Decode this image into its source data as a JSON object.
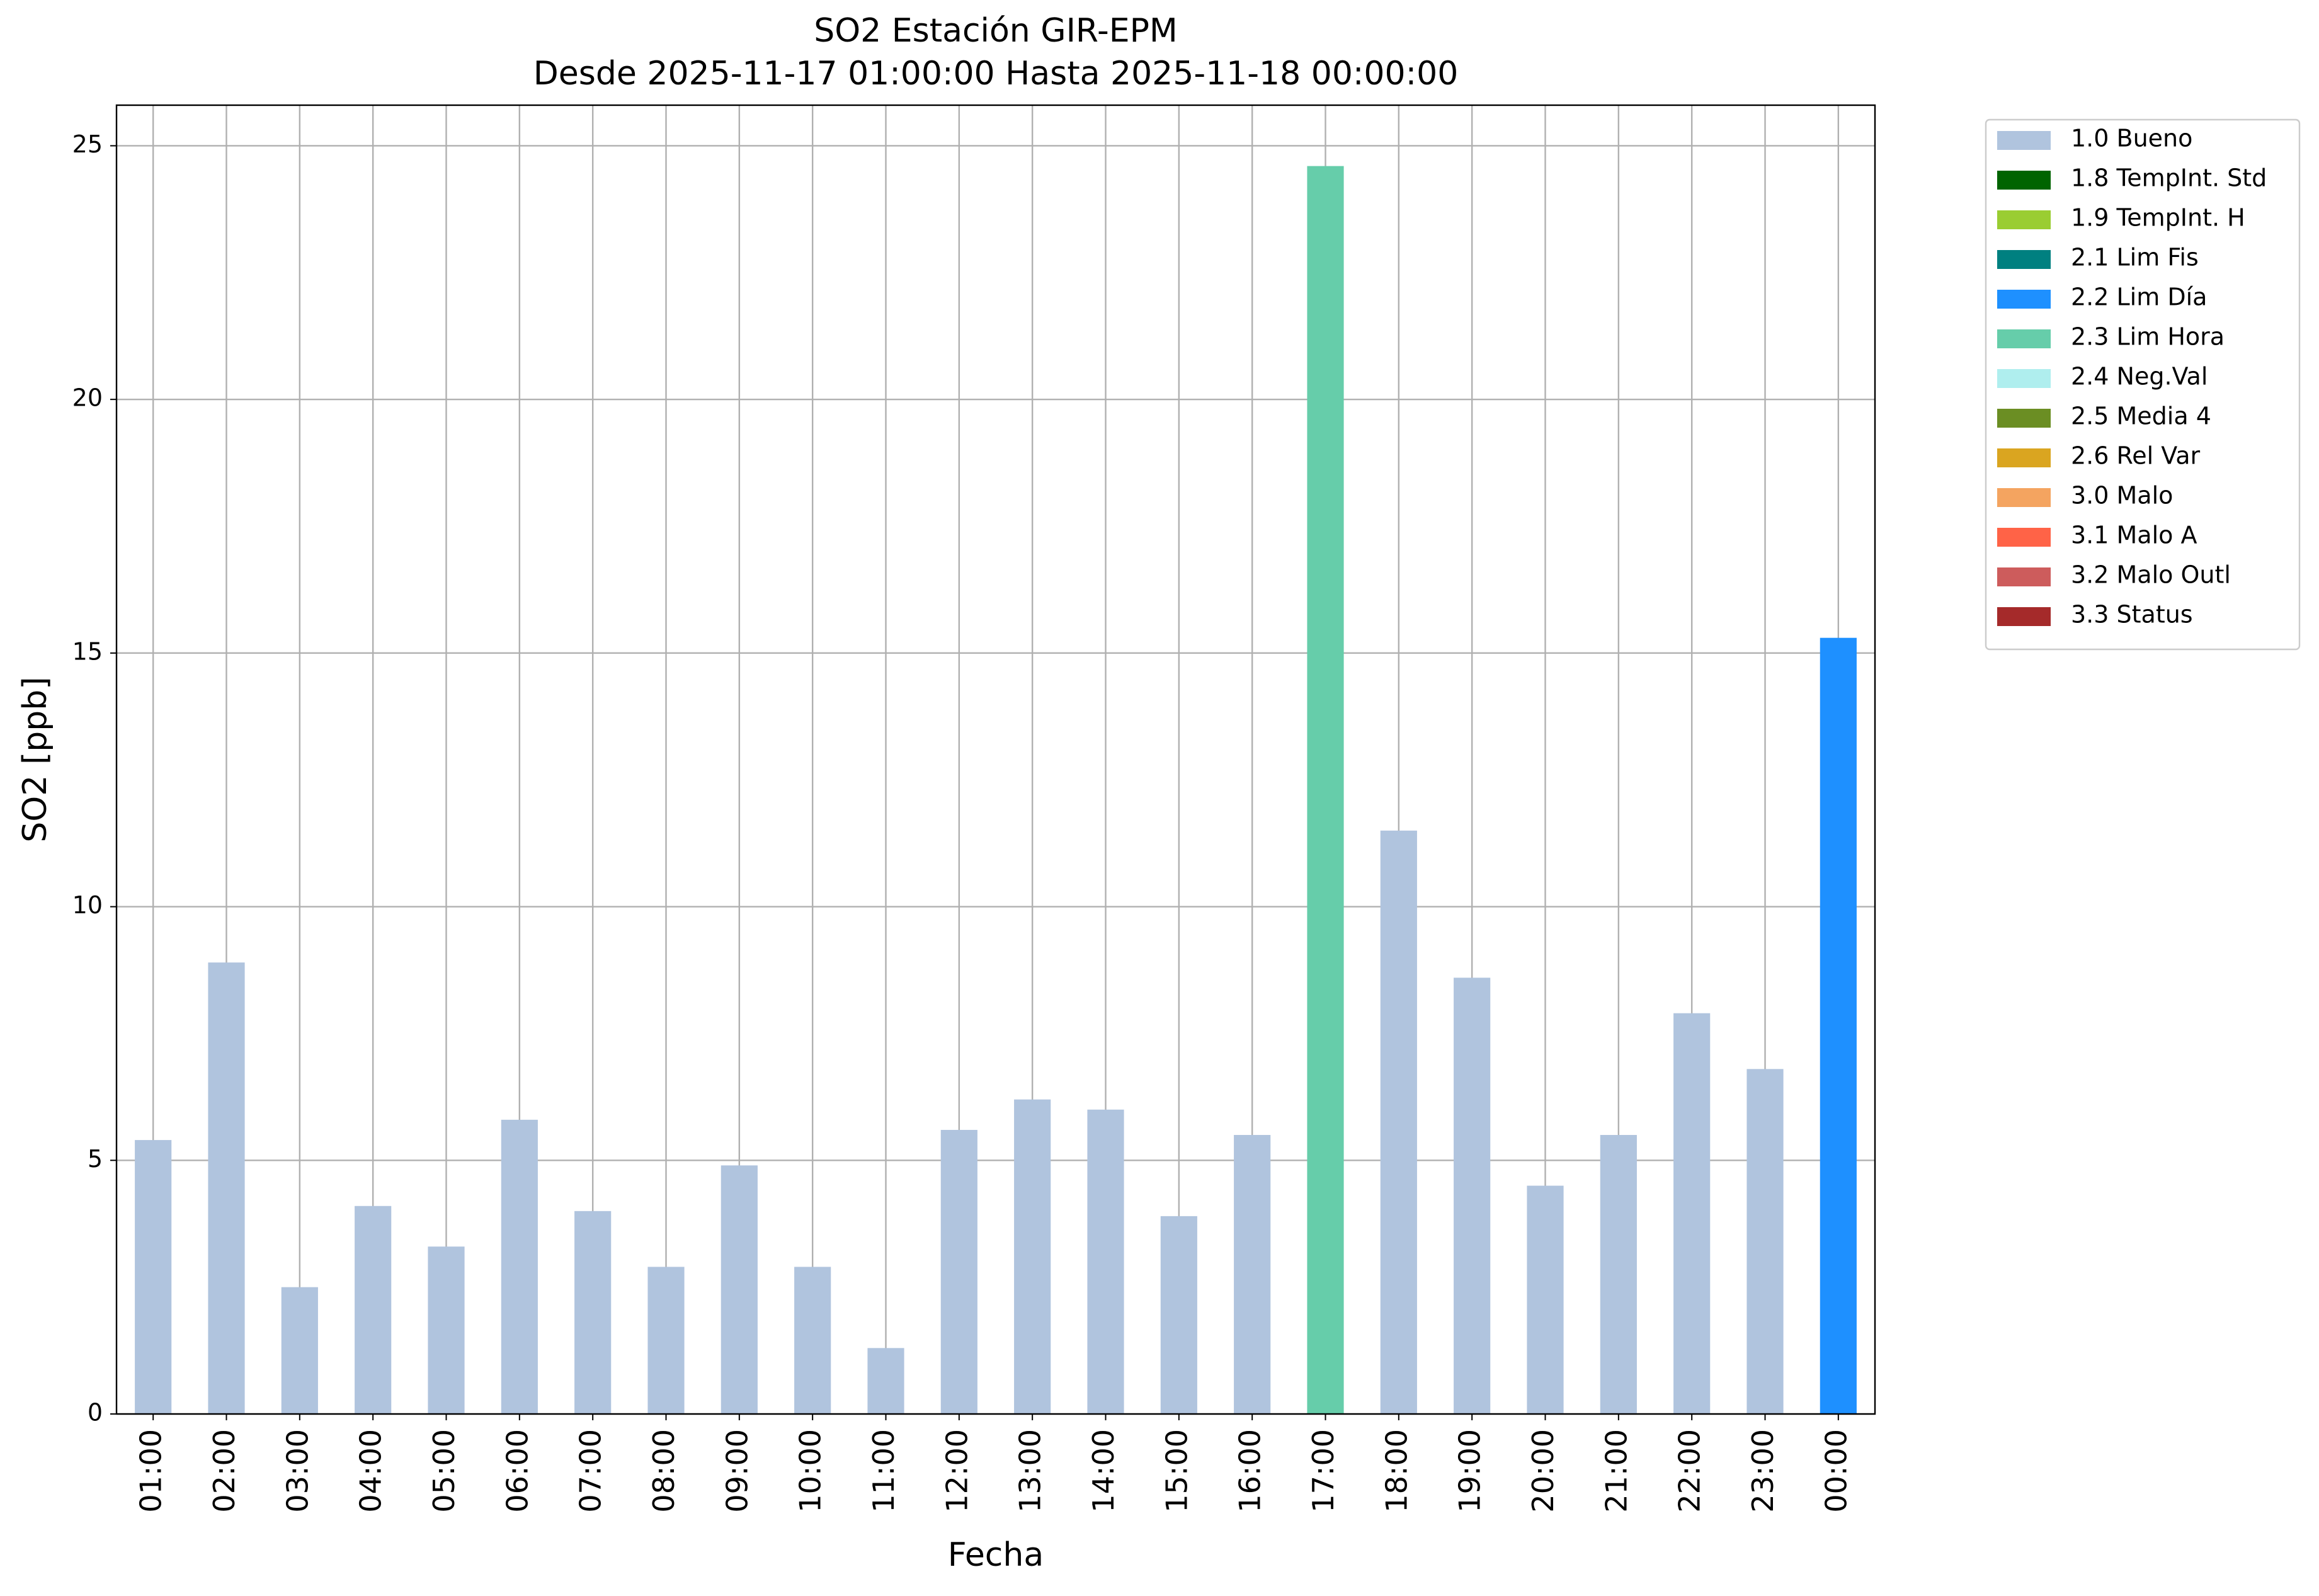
{
  "chart_data": {
    "type": "bar",
    "stacked": true,
    "title": "SO2 Estación GIR-EPM",
    "subtitle": "Desde 2025-11-17 01:00:00 Hasta 2025-11-18 00:00:00",
    "x_label": "Fecha",
    "y_label": "SO2 [ppb]",
    "categories": [
      "01:00",
      "02:00",
      "03:00",
      "04:00",
      "05:00",
      "06:00",
      "07:00",
      "08:00",
      "09:00",
      "10:00",
      "11:00",
      "12:00",
      "13:00",
      "14:00",
      "15:00",
      "16:00",
      "17:00",
      "18:00",
      "19:00",
      "20:00",
      "21:00",
      "22:00",
      "23:00",
      "00:00"
    ],
    "series": [
      {
        "name": "1.0 Bueno",
        "color": "#b0c4de",
        "values": [
          5.4,
          8.9,
          2.5,
          4.1,
          3.3,
          5.8,
          4.0,
          2.9,
          4.9,
          2.9,
          1.3,
          5.6,
          6.2,
          6.0,
          3.9,
          5.5,
          null,
          11.5,
          8.6,
          4.5,
          5.5,
          7.9,
          6.8,
          null
        ]
      },
      {
        "name": "1.8 TempInt. Std",
        "color": "#006400",
        "values": [
          null,
          null,
          null,
          null,
          null,
          null,
          null,
          null,
          null,
          null,
          null,
          null,
          null,
          null,
          null,
          null,
          null,
          null,
          null,
          null,
          null,
          null,
          null,
          null
        ]
      },
      {
        "name": "1.9 TempInt. H",
        "color": "#9acd32",
        "values": [
          null,
          null,
          null,
          null,
          null,
          null,
          null,
          null,
          null,
          null,
          null,
          null,
          null,
          null,
          null,
          null,
          null,
          null,
          null,
          null,
          null,
          null,
          null,
          null
        ]
      },
      {
        "name": "2.1 Lim Fis",
        "color": "#008080",
        "values": [
          null,
          null,
          null,
          null,
          null,
          null,
          null,
          null,
          null,
          null,
          null,
          null,
          null,
          null,
          null,
          null,
          null,
          null,
          null,
          null,
          null,
          null,
          null,
          null
        ]
      },
      {
        "name": "2.2 Lim Día",
        "color": "#1e90ff",
        "values": [
          null,
          null,
          null,
          null,
          null,
          null,
          null,
          null,
          null,
          null,
          null,
          null,
          null,
          null,
          null,
          null,
          null,
          null,
          null,
          null,
          null,
          null,
          null,
          15.3
        ]
      },
      {
        "name": "2.3 Lim Hora",
        "color": "#66cdaa",
        "values": [
          null,
          null,
          null,
          null,
          null,
          null,
          null,
          null,
          null,
          null,
          null,
          null,
          null,
          null,
          null,
          null,
          24.6,
          null,
          null,
          null,
          null,
          null,
          null,
          null
        ]
      },
      {
        "name": "2.4 Neg.Val",
        "color": "#afeeee",
        "values": [
          null,
          null,
          null,
          null,
          null,
          null,
          null,
          null,
          null,
          null,
          null,
          null,
          null,
          null,
          null,
          null,
          null,
          null,
          null,
          null,
          null,
          null,
          null,
          null
        ]
      },
      {
        "name": "2.5 Media 4",
        "color": "#6b8e23",
        "values": [
          null,
          null,
          null,
          null,
          null,
          null,
          null,
          null,
          null,
          null,
          null,
          null,
          null,
          null,
          null,
          null,
          null,
          null,
          null,
          null,
          null,
          null,
          null,
          null
        ]
      },
      {
        "name": "2.6 Rel Var",
        "color": "#daa520",
        "values": [
          null,
          null,
          null,
          null,
          null,
          null,
          null,
          null,
          null,
          null,
          null,
          null,
          null,
          null,
          null,
          null,
          null,
          null,
          null,
          null,
          null,
          null,
          null,
          null
        ]
      },
      {
        "name": "3.0 Malo",
        "color": "#f4a460",
        "values": [
          null,
          null,
          null,
          null,
          null,
          null,
          null,
          null,
          null,
          null,
          null,
          null,
          null,
          null,
          null,
          null,
          null,
          null,
          null,
          null,
          null,
          null,
          null,
          null
        ]
      },
      {
        "name": "3.1 Malo A",
        "color": "#ff6347",
        "values": [
          null,
          null,
          null,
          null,
          null,
          null,
          null,
          null,
          null,
          null,
          null,
          null,
          null,
          null,
          null,
          null,
          null,
          null,
          null,
          null,
          null,
          null,
          null,
          null
        ]
      },
      {
        "name": "3.2 Malo Outl",
        "color": "#cd5c5c",
        "values": [
          null,
          null,
          null,
          null,
          null,
          null,
          null,
          null,
          null,
          null,
          null,
          null,
          null,
          null,
          null,
          null,
          null,
          null,
          null,
          null,
          null,
          null,
          null,
          null
        ]
      },
      {
        "name": "3.3 Status",
        "color": "#a52a2a",
        "values": [
          null,
          null,
          null,
          null,
          null,
          null,
          null,
          null,
          null,
          null,
          null,
          null,
          null,
          null,
          null,
          null,
          null,
          null,
          null,
          null,
          null,
          null,
          null,
          null
        ]
      }
    ],
    "ylim": [
      0,
      25.8
    ],
    "yticks": [
      0,
      5,
      10,
      15,
      20,
      25
    ],
    "grid": true,
    "legend": "outside-upper-right"
  }
}
